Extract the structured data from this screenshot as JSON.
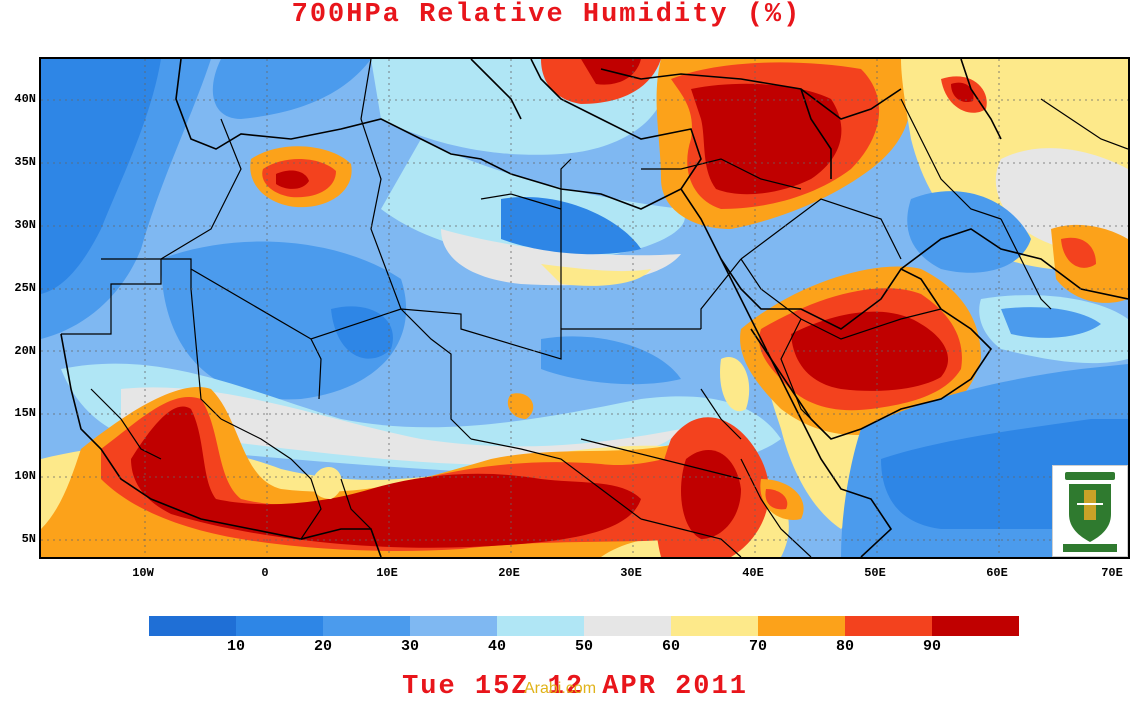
{
  "title": "700HPa Relative Humidity (%)",
  "date_label": "Tue 15Z 12 APR 2011",
  "watermark": "Arabi.com",
  "map": {
    "lat_labels": [
      "40N",
      "35N",
      "30N",
      "25N",
      "20N",
      "15N",
      "10N",
      "5N"
    ],
    "lon_labels": [
      "10W",
      "0",
      "10E",
      "20E",
      "30E",
      "40E",
      "50E",
      "60E",
      "70E"
    ],
    "palette": {
      "lt10": "#1f6fd6",
      "10_20": "#2e86e6",
      "20_30": "#4b9bed",
      "30_40": "#7fb8f2",
      "40_50": "#b0e6f5",
      "50_60": "#e6e6e6",
      "60_70": "#fde98a",
      "70_80": "#fca21a",
      "80_90": "#f3421e",
      "gt90": "#c00000"
    }
  },
  "colorbar": {
    "colors": [
      "#1f6fd6",
      "#2e86e6",
      "#4b9bed",
      "#7fb8f2",
      "#b0e6f5",
      "#e6e6e6",
      "#fde98a",
      "#fca21a",
      "#f3421e",
      "#c00000"
    ],
    "ticks": [
      "10",
      "20",
      "30",
      "40",
      "50",
      "60",
      "70",
      "80",
      "90"
    ]
  }
}
